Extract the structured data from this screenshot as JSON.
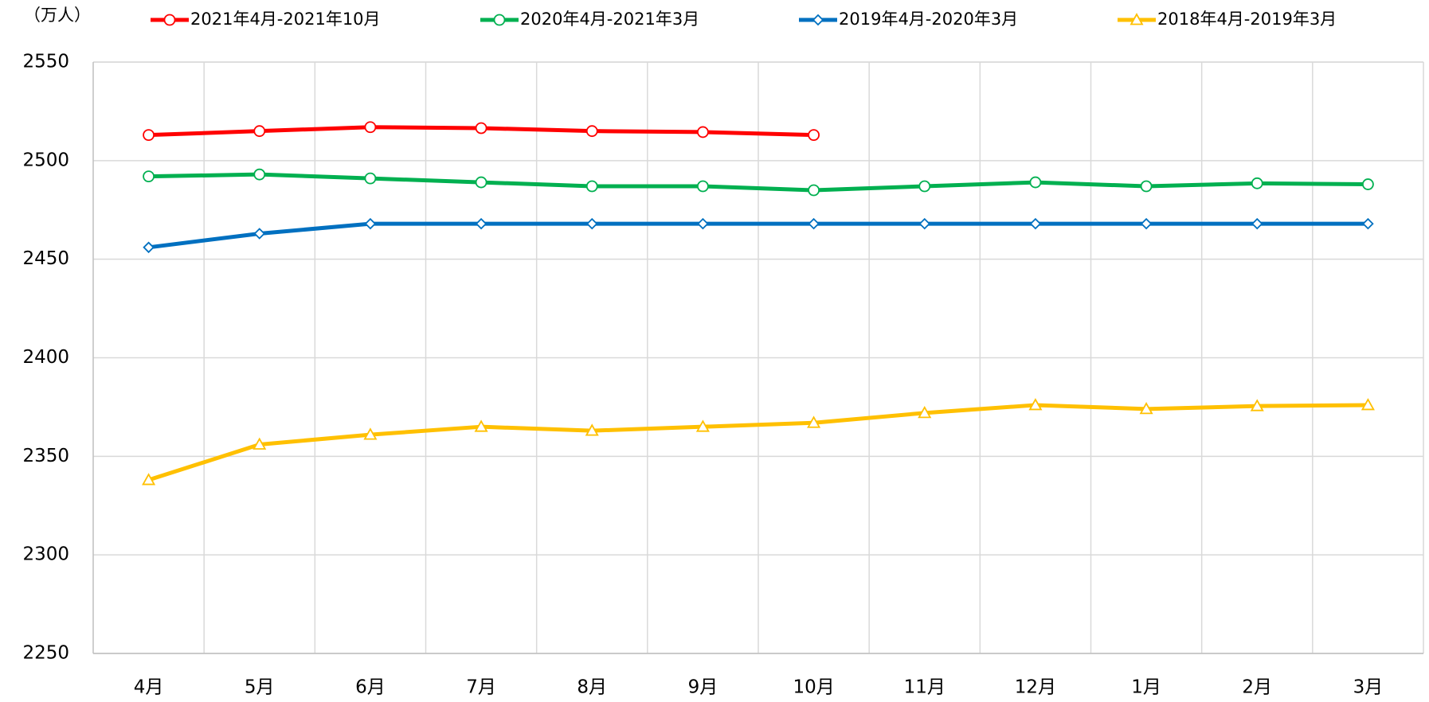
{
  "chart_data": {
    "type": "line",
    "unit_label": "（万人）",
    "categories": [
      "4月",
      "5月",
      "6月",
      "7月",
      "8月",
      "9月",
      "10月",
      "11月",
      "12月",
      "1月",
      "2月",
      "3月"
    ],
    "series": [
      {
        "name": "2021年4月-2021年10月",
        "color": "#ff0000",
        "marker": "circle",
        "values": [
          2513,
          2515,
          2517,
          2516.5,
          2515,
          2514.5,
          2513,
          null,
          null,
          null,
          null,
          null
        ]
      },
      {
        "name": "2020年4月-2021年3月",
        "color": "#00b050",
        "marker": "circle",
        "values": [
          2492,
          2493,
          2491,
          2489,
          2487,
          2487,
          2485,
          2487,
          2489,
          2487,
          2488.5,
          2488
        ]
      },
      {
        "name": "2019年4月-2020年3月",
        "color": "#0070c0",
        "marker": "diamond",
        "values": [
          2456,
          2463,
          2468,
          2468,
          2468,
          2468,
          2468,
          2468,
          2468,
          2468,
          2468,
          2468
        ]
      },
      {
        "name": "2018年4月-2019年3月",
        "color": "#ffc000",
        "marker": "triangle",
        "values": [
          2338,
          2356,
          2361,
          2365,
          2363,
          2365,
          2367,
          2372,
          2376,
          2374,
          2375.5,
          2376
        ]
      }
    ],
    "ylim": [
      2250,
      2550
    ],
    "yticks": [
      2250,
      2300,
      2350,
      2400,
      2450,
      2500,
      2550
    ],
    "grid": true
  }
}
